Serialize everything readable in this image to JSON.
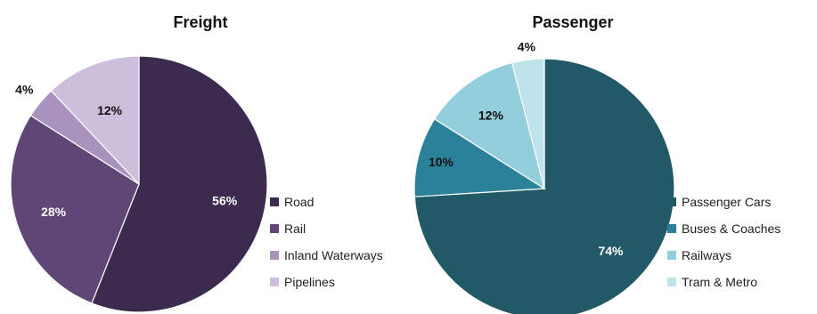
{
  "chart_data": [
    {
      "type": "pie",
      "title": "Freight",
      "legend_position": "right",
      "categories": [
        "Road",
        "Rail",
        "Inland Waterways",
        "Pipelines"
      ],
      "values": [
        56,
        28,
        4,
        12
      ],
      "labels": [
        "56%",
        "28%",
        "4%",
        "12%"
      ],
      "colors": [
        "#3d2b4f",
        "#5f4677",
        "#a893bf",
        "#cbbfdb"
      ],
      "label_colors": [
        "#ffffff",
        "#ffffff",
        "#111111",
        "#111111"
      ]
    },
    {
      "type": "pie",
      "title": "Passenger",
      "legend_position": "right",
      "categories": [
        "Passenger Cars",
        "Buses & Coaches",
        "Railways",
        "Tram & Metro"
      ],
      "values": [
        74,
        10,
        12,
        4
      ],
      "labels": [
        "74%",
        "10%",
        "12%",
        "4%"
      ],
      "colors": [
        "#215a66",
        "#2b8199",
        "#93cedd",
        "#bfe3ea"
      ],
      "label_colors": [
        "#ffffff",
        "#111111",
        "#111111",
        "#111111"
      ]
    }
  ]
}
